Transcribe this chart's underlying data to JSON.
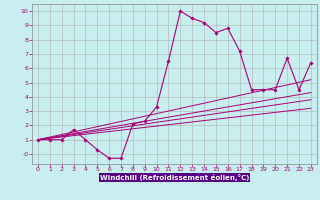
{
  "title": "",
  "xlabel": "Windchill (Refroidissement éolien,°C)",
  "ylabel": "",
  "xlim": [
    -0.5,
    23.5
  ],
  "ylim": [
    -0.7,
    10.5
  ],
  "xticks": [
    0,
    1,
    2,
    3,
    4,
    5,
    6,
    7,
    8,
    9,
    10,
    11,
    12,
    13,
    14,
    15,
    16,
    17,
    18,
    19,
    20,
    21,
    22,
    23
  ],
  "yticks": [
    0,
    1,
    2,
    3,
    4,
    5,
    6,
    7,
    8,
    9,
    10
  ],
  "ytick_labels": [
    "-0",
    "1",
    "2",
    "3",
    "4",
    "5",
    "6",
    "7",
    "8",
    "9",
    "10"
  ],
  "bg_color": "#c8eef0",
  "grid_color": "#b0b0b0",
  "line_color": "#aa0077",
  "spine_color": "#888888",
  "xlabel_bg": "#6600aa",
  "main_line": {
    "x": [
      0,
      1,
      2,
      3,
      4,
      5,
      6,
      7,
      8,
      9,
      10,
      11,
      12,
      13,
      14,
      15,
      16,
      17,
      18,
      19,
      20,
      21,
      22,
      23
    ],
    "y": [
      1,
      1,
      1,
      1.7,
      1,
      0.3,
      -0.3,
      -0.3,
      2.1,
      2.3,
      3.3,
      6.5,
      10,
      9.5,
      9.2,
      8.5,
      8.8,
      7.2,
      4.5,
      4.5,
      4.5,
      6.7,
      4.5,
      6.4
    ]
  },
  "reg_lines": [
    {
      "x": [
        0,
        23
      ],
      "y": [
        1.0,
        5.2
      ]
    },
    {
      "x": [
        0,
        23
      ],
      "y": [
        1.0,
        4.3
      ]
    },
    {
      "x": [
        0,
        23
      ],
      "y": [
        1.0,
        3.8
      ]
    },
    {
      "x": [
        0,
        23
      ],
      "y": [
        1.0,
        3.2
      ]
    }
  ]
}
